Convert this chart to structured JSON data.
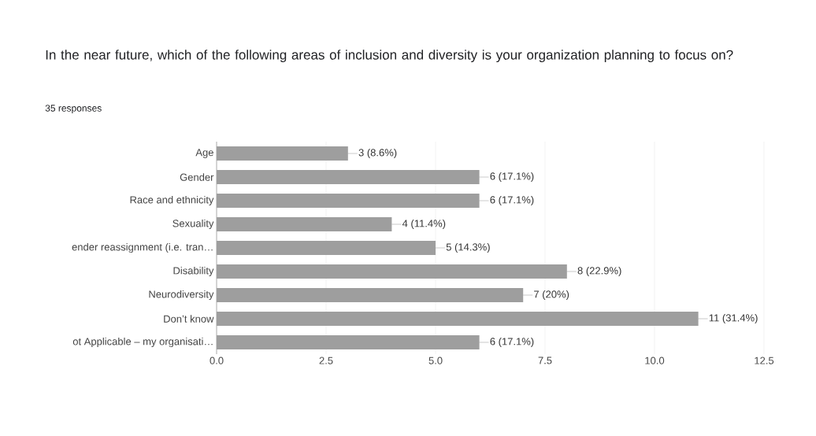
{
  "chart_data": {
    "type": "bar",
    "orientation": "horizontal",
    "title": "In the near future, which of the following areas of inclusion and diversity is your organization planning to focus on?",
    "subtitle": "35 responses",
    "categories": [
      "Age",
      "Gender",
      "Race and ethnicity",
      "Sexuality",
      "ender reassignment (i.e. tran…",
      "Disability",
      "Neurodiversity",
      "Don’t know",
      "ot Applicable – my organisati…"
    ],
    "values": [
      3,
      6,
      6,
      4,
      5,
      8,
      7,
      11,
      6
    ],
    "value_labels": [
      "3 (8.6%)",
      "6 (17.1%)",
      "6 (17.1%)",
      "4 (11.4%)",
      "5 (14.3%)",
      "8 (22.9%)",
      "7 (20%)",
      "11 (31.4%)",
      "6 (17.1%)"
    ],
    "color": "#9e9e9e",
    "xlim": [
      0,
      12.5
    ],
    "xticks": [
      {
        "value": 0,
        "label": "0.0"
      },
      {
        "value": 2.5,
        "label": "2.5"
      },
      {
        "value": 5,
        "label": "5.0"
      },
      {
        "value": 7.5,
        "label": "7.5"
      },
      {
        "value": 10,
        "label": "10.0"
      },
      {
        "value": 12.5,
        "label": "12.5"
      }
    ],
    "grid": "x"
  }
}
